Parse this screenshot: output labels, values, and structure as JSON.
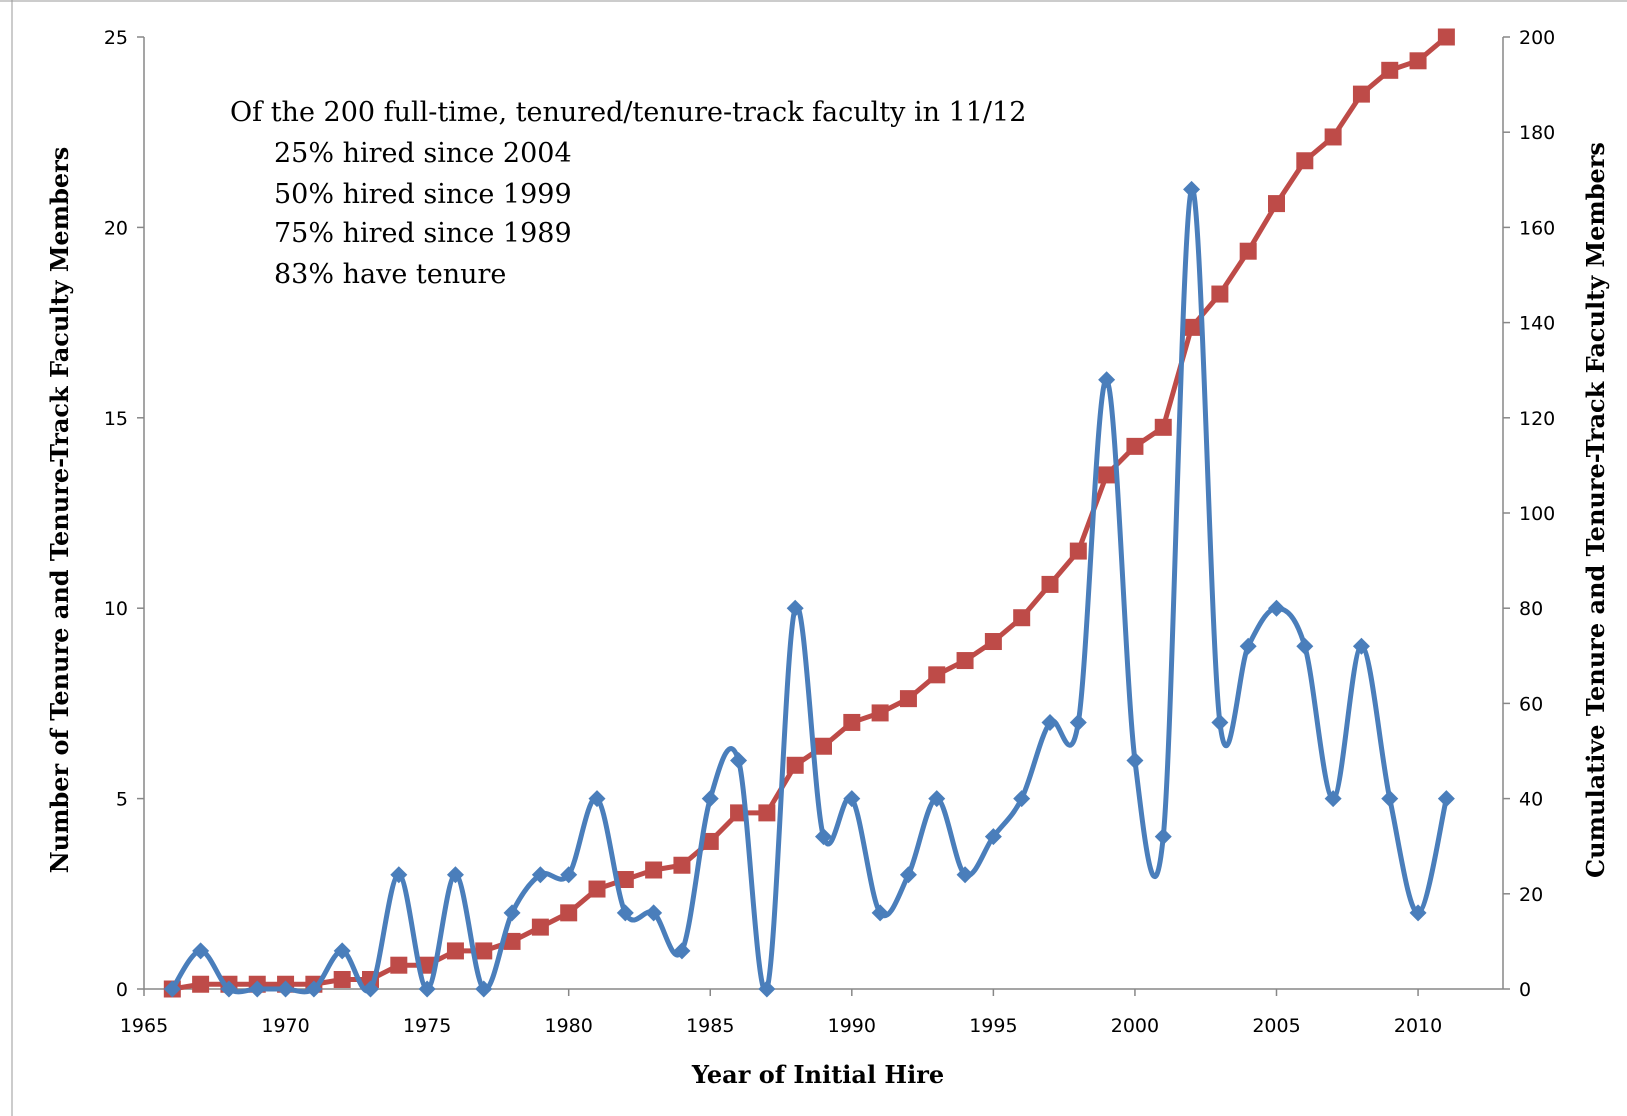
{
  "chart_data": {
    "type": "line",
    "xlabel": "Year of Initial Hire",
    "ylabel": "Number of  Tenure and Tenure-Track Faculty Members",
    "y2label": "Cumulative Tenure and Tenure-Track Faculty Members",
    "xlim": [
      1965,
      2013
    ],
    "ylim": [
      0,
      25
    ],
    "y2lim": [
      0,
      200
    ],
    "xticks": [
      1965,
      1970,
      1975,
      1980,
      1985,
      1990,
      1995,
      2000,
      2005,
      2010
    ],
    "yticks": [
      0,
      5,
      10,
      15,
      20,
      25
    ],
    "y2ticks": [
      0,
      20,
      40,
      60,
      80,
      100,
      120,
      140,
      160,
      180,
      200
    ],
    "grid": false,
    "annotation": [
      "Of the 200 full-time, tenured/tenure-track faculty in 11/12",
      "25% hired since 2004",
      "50% hired since 1999",
      "75% hired since 1989",
      "83% have tenure"
    ],
    "x": [
      1966,
      1967,
      1968,
      1969,
      1970,
      1971,
      1972,
      1973,
      1974,
      1975,
      1976,
      1977,
      1978,
      1979,
      1980,
      1981,
      1982,
      1983,
      1984,
      1985,
      1986,
      1987,
      1988,
      1989,
      1990,
      1991,
      1992,
      1993,
      1994,
      1995,
      1996,
      1997,
      1998,
      1999,
      2000,
      2001,
      2002,
      2003,
      2004,
      2005,
      2006,
      2007,
      2008,
      2009,
      2010,
      2011
    ],
    "series": [
      {
        "axis": "left",
        "color": "#4a7ebb",
        "marker": "diamond",
        "smooth": true,
        "values": [
          0,
          1,
          0,
          0,
          0,
          0,
          1,
          0,
          3,
          0,
          3,
          0,
          2,
          3,
          3,
          5,
          2,
          2,
          1,
          5,
          6,
          0,
          10,
          4,
          5,
          2,
          3,
          5,
          3,
          4,
          5,
          7,
          7,
          16,
          6,
          4,
          21,
          7,
          9,
          10,
          9,
          5,
          9,
          5,
          2,
          5
        ]
      },
      {
        "axis": "right",
        "color": "#be4b48",
        "marker": "square",
        "smooth": false,
        "values": [
          0,
          1,
          1,
          1,
          1,
          1,
          2,
          2,
          5,
          5,
          8,
          8,
          10,
          13,
          16,
          21,
          23,
          25,
          26,
          31,
          37,
          37,
          47,
          51,
          56,
          58,
          61,
          66,
          69,
          73,
          78,
          85,
          92,
          108,
          114,
          118,
          139,
          146,
          155,
          165,
          174,
          179,
          188,
          193,
          195,
          200
        ]
      }
    ]
  }
}
